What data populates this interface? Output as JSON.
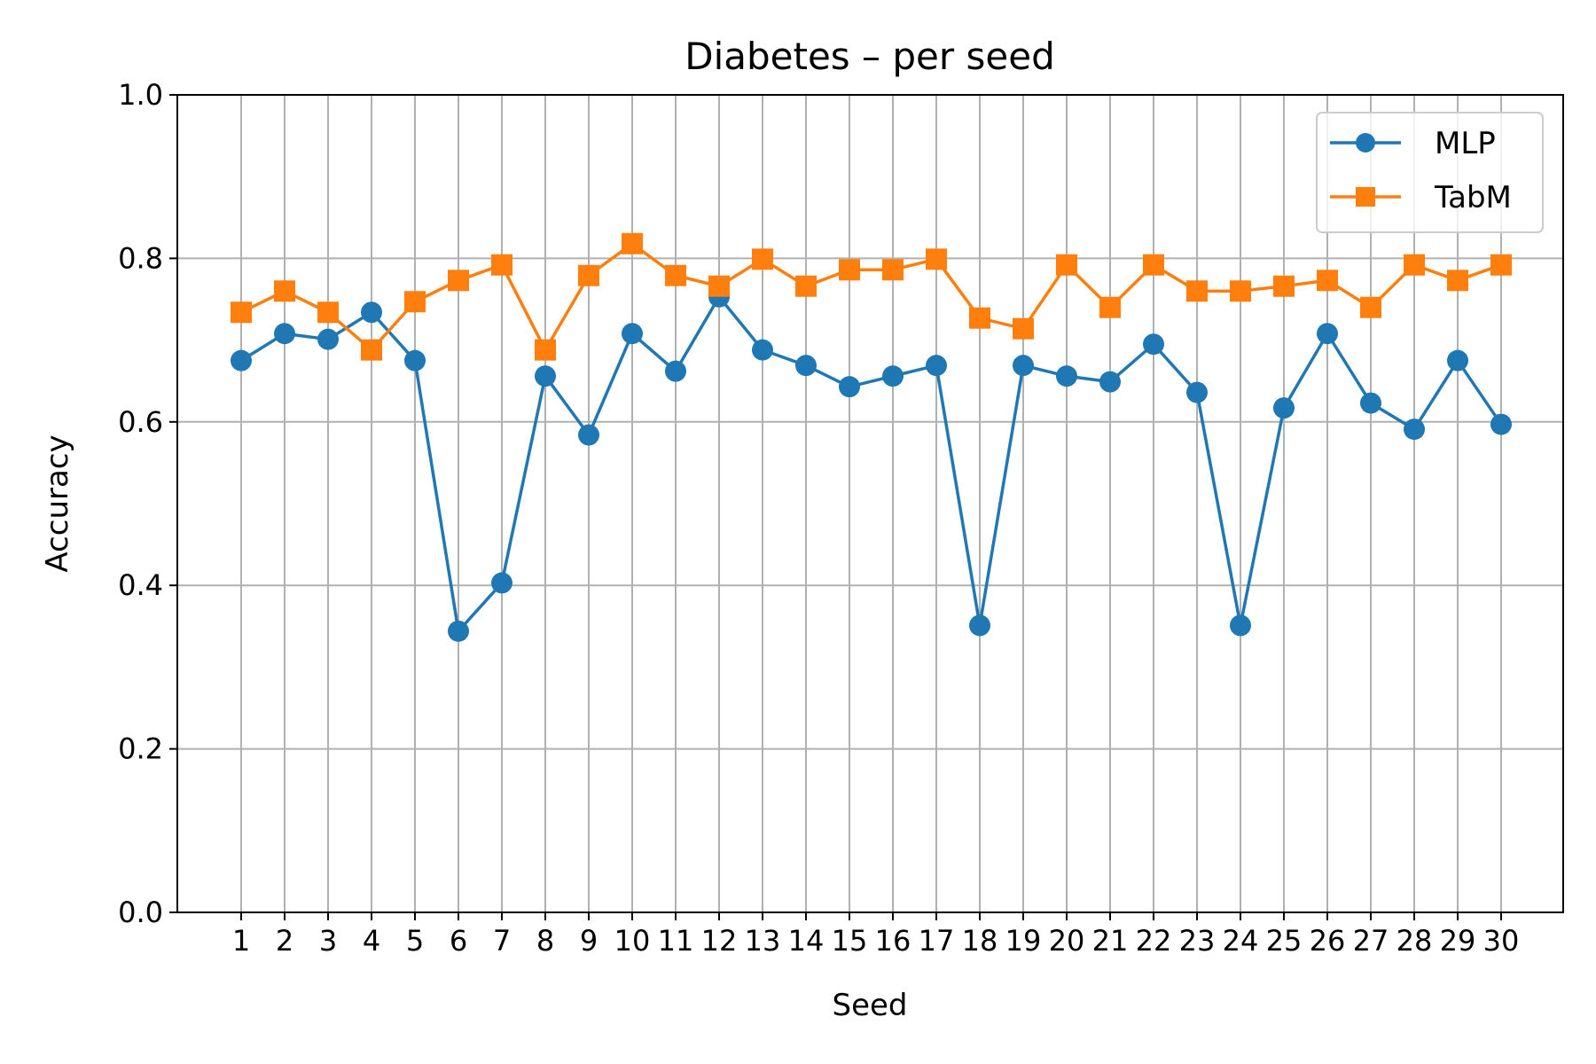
{
  "chart_data": {
    "type": "line",
    "title": "Diabetes – per seed",
    "xlabel": "Seed",
    "ylabel": "Accuracy",
    "ylim": [
      0,
      1
    ],
    "yticks": [
      "0.0",
      "0.2",
      "0.4",
      "0.6",
      "0.8",
      "1.0"
    ],
    "x": [
      1,
      2,
      3,
      4,
      5,
      6,
      7,
      8,
      9,
      10,
      11,
      12,
      13,
      14,
      15,
      16,
      17,
      18,
      19,
      20,
      21,
      22,
      23,
      24,
      25,
      26,
      27,
      28,
      29,
      30
    ],
    "grid": true,
    "legend": "upper right",
    "series": [
      {
        "name": "MLP",
        "color": "#1f77b4",
        "marker": "circle",
        "values": [
          0.675,
          0.708,
          0.701,
          0.734,
          0.675,
          0.344,
          0.403,
          0.656,
          0.584,
          0.708,
          0.662,
          0.753,
          0.688,
          0.669,
          0.643,
          0.656,
          0.669,
          0.351,
          0.669,
          0.656,
          0.649,
          0.695,
          0.636,
          0.351,
          0.617,
          0.708,
          0.623,
          0.591,
          0.675,
          0.597
        ]
      },
      {
        "name": "TabM",
        "color": "#ff7f0e",
        "marker": "square",
        "values": [
          0.734,
          0.76,
          0.734,
          0.688,
          0.747,
          0.773,
          0.792,
          0.688,
          0.779,
          0.818,
          0.779,
          0.766,
          0.799,
          0.766,
          0.786,
          0.786,
          0.799,
          0.727,
          0.714,
          0.792,
          0.74,
          0.792,
          0.76,
          0.76,
          0.766,
          0.773,
          0.74,
          0.792,
          0.773,
          0.792
        ]
      }
    ]
  }
}
